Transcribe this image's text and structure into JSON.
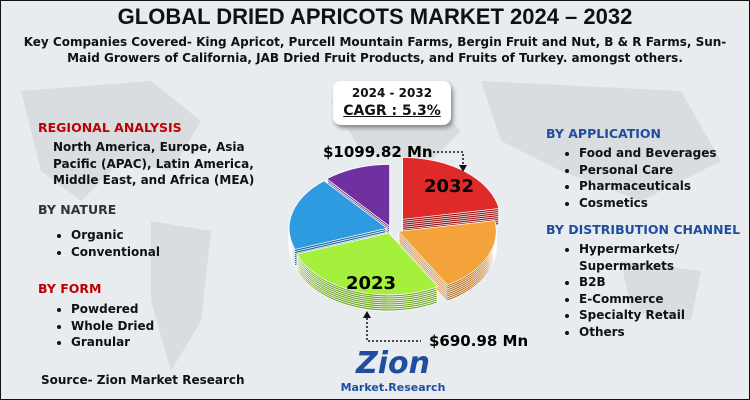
{
  "header": {
    "title": "GLOBAL DRIED APRICOTS MARKET 2024 – 2032",
    "subtitle": "Key Companies Covered- King Apricot, Purcell Mountain Farms, Bergin Fruit and Nut, B & R Farms, Sun-Maid Growers of California, JAB Dried Fruit Products, and Fruits of Turkey. amongst others."
  },
  "cagr": {
    "period": "2024 - 2032",
    "label": "CAGR : 5.3%"
  },
  "regional_analysis": {
    "heading": "REGIONAL ANALYSIS",
    "text": "North America, Europe, Asia Pacific (APAC), Latin America, Middle East, and Africa (MEA)"
  },
  "by_nature": {
    "heading": "BY NATURE",
    "items": [
      "Organic",
      "Conventional"
    ]
  },
  "by_form": {
    "heading": "BY FORM",
    "items": [
      "Powdered",
      "Whole Dried",
      "Granular"
    ]
  },
  "by_application": {
    "heading": "BY APPLICATION",
    "items": [
      "Food and Beverages",
      "Personal Care",
      "Pharmaceuticals",
      "Cosmetics"
    ]
  },
  "by_distribution_channel": {
    "heading": "BY DISTRIBUTION CHANNEL",
    "items": [
      "Hypermarkets/ Supermarkets",
      "B2B",
      "E-Commerce",
      "Specialty Retail",
      "Others"
    ]
  },
  "pie": {
    "value_2032": "$1099.82 Mn",
    "year_2032": "2032",
    "value_2023": "$690.98 Mn",
    "year_2023": "2023"
  },
  "logo": {
    "name": "Zion",
    "tagline": "Market.Research"
  },
  "source": "Source- Zion Market Research"
}
